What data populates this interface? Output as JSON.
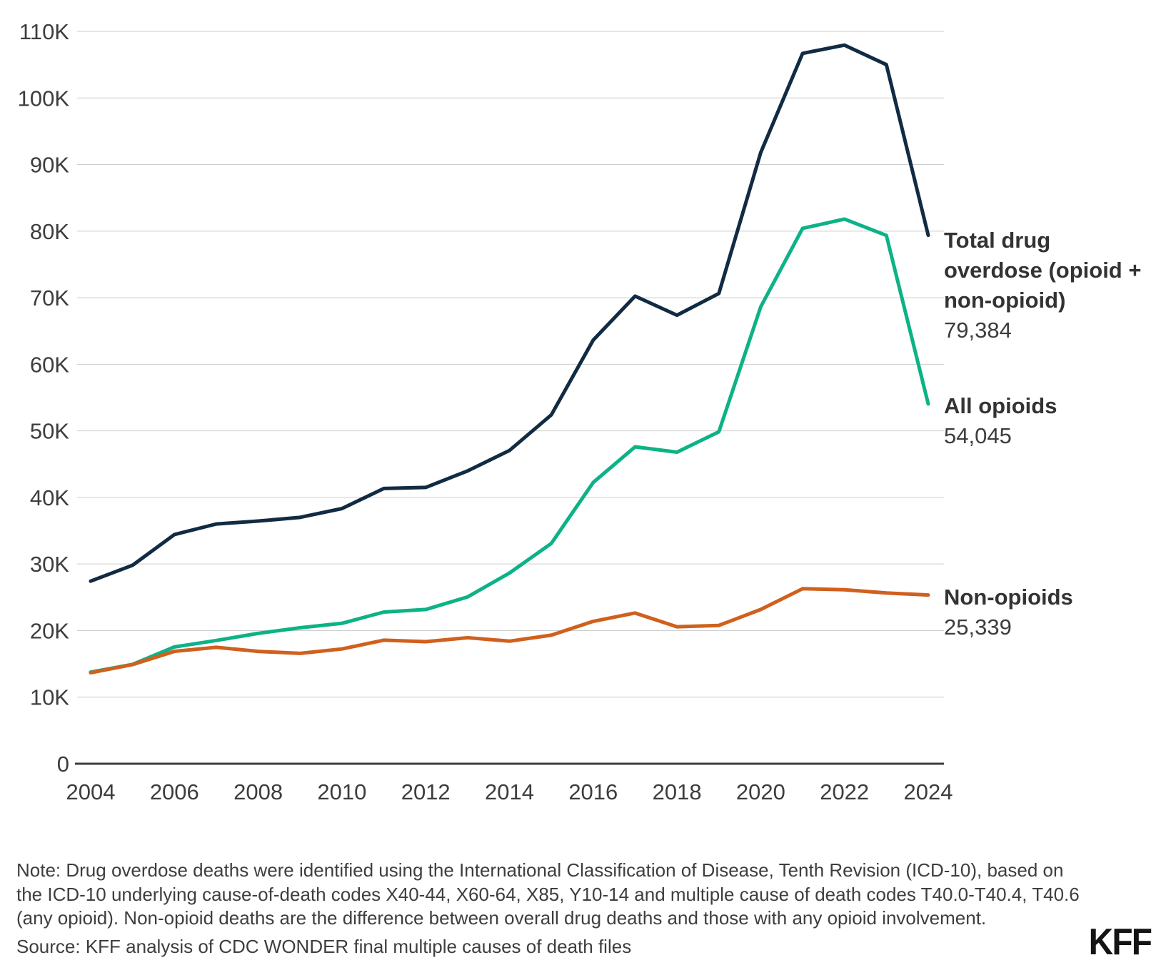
{
  "chart_data": {
    "type": "line",
    "title": "",
    "xlabel": "",
    "ylabel": "",
    "ylim": [
      0,
      110000
    ],
    "grid": true,
    "legend_position": "right-end-labels",
    "x": [
      2004,
      2005,
      2006,
      2007,
      2008,
      2009,
      2010,
      2011,
      2012,
      2013,
      2014,
      2015,
      2016,
      2017,
      2018,
      2019,
      2020,
      2021,
      2022,
      2023,
      2024
    ],
    "x_tick_labels": [
      "2004",
      "2006",
      "2008",
      "2010",
      "2012",
      "2014",
      "2016",
      "2018",
      "2020",
      "2022",
      "2024"
    ],
    "y_tick_labels": [
      "0",
      "10K",
      "20K",
      "30K",
      "40K",
      "50K",
      "60K",
      "70K",
      "80K",
      "90K",
      "100K",
      "110K"
    ],
    "series": [
      {
        "name": "Total drug overdose (opioid + non-opioid)",
        "name_lines": [
          "Total drug",
          "overdose (opioid +",
          "non-opioid)"
        ],
        "value_label": "79,384",
        "color": "#112b43",
        "values": [
          27424,
          29813,
          34425,
          36010,
          36450,
          37004,
          38329,
          41340,
          41502,
          43982,
          47055,
          52404,
          63632,
          70237,
          67367,
          70630,
          91799,
          106699,
          107941,
          105007,
          79384
        ]
      },
      {
        "name": "All opioids",
        "name_lines": [
          "All opioids"
        ],
        "value_label": "54,045",
        "color": "#0db287",
        "values": [
          13756,
          14918,
          17545,
          18516,
          19582,
          20422,
          21089,
          22784,
          23166,
          25052,
          28647,
          33091,
          42249,
          47600,
          46802,
          49860,
          68630,
          80411,
          81806,
          79358,
          54045
        ]
      },
      {
        "name": "Non-opioids",
        "name_lines": [
          "Non-opioids"
        ],
        "value_label": "25,339",
        "color": "#d0601d",
        "values": [
          13668,
          14895,
          16880,
          17494,
          16868,
          16582,
          17240,
          18556,
          18336,
          18930,
          18408,
          19313,
          21383,
          22637,
          20565,
          20770,
          23169,
          26288,
          26135,
          25649,
          25339
        ]
      }
    ],
    "colors": {
      "gridline": "#cdcdcd",
      "axis": "#3d3d3d",
      "tick_text": "#3d3d3d"
    }
  },
  "footer": {
    "note_lines": [
      "Note: Drug overdose deaths were identified using the International Classification of Disease, Tenth Revision (ICD-10), based on",
      "the ICD-10 underlying cause-of-death codes X40-44, X60-64, X85, Y10-14 and multiple cause of death codes T40.0-T40.4, T40.6",
      "(any opioid). Non-opioid deaths are the difference between overall drug deaths and those with any opioid involvement."
    ],
    "source": "Source: KFF analysis of CDC WONDER final multiple causes of death files",
    "logo": "KFF"
  }
}
